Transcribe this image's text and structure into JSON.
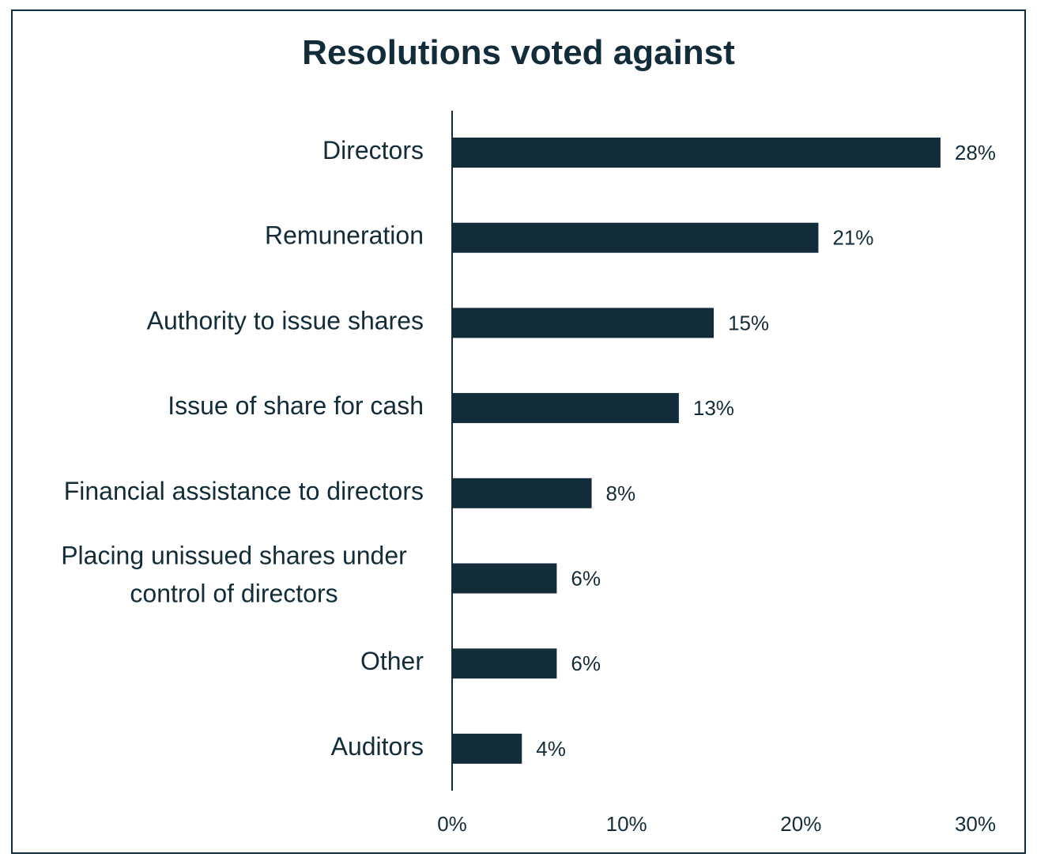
{
  "chart_data": {
    "type": "bar",
    "orientation": "horizontal",
    "title": "Resolutions voted against",
    "categories": [
      "Directors",
      "Remuneration",
      "Authority to issue shares",
      "Issue of share for cash",
      "Financial assistance to directors",
      "Placing unissued shares under control of directors",
      "Other",
      "Auditors"
    ],
    "category_lines": [
      [
        "Directors"
      ],
      [
        "Remuneration"
      ],
      [
        "Authority to issue shares"
      ],
      [
        "Issue of share for cash"
      ],
      [
        "Financial assistance to directors"
      ],
      [
        "Placing unissued shares under",
        "control of directors"
      ],
      [
        "Other"
      ],
      [
        "Auditors"
      ]
    ],
    "values": [
      28,
      21,
      15,
      13,
      8,
      6,
      6,
      4
    ],
    "value_labels": [
      "28%",
      "21%",
      "15%",
      "13%",
      "8%",
      "6%",
      "6%",
      "4%"
    ],
    "xlim": [
      0,
      30
    ],
    "xticks": [
      0,
      10,
      20,
      30
    ],
    "xtick_labels": [
      "0%",
      "10%",
      "20%",
      "30%"
    ],
    "xlabel": "",
    "ylabel": "",
    "grid": false,
    "legend": "none",
    "bar_color": "#122c3a"
  }
}
